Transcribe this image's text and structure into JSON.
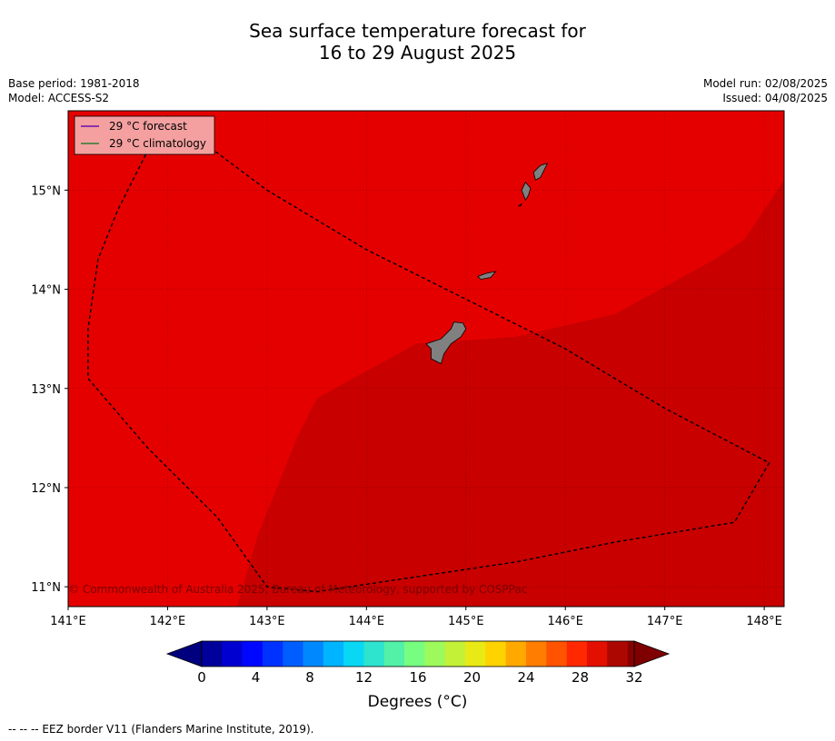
{
  "title": {
    "line1": "Sea surface temperature forecast for",
    "line2": "16 to 29 August 2025"
  },
  "meta": {
    "base_period": "Base period: 1981-2018",
    "model": "Model: ACCESS-S2",
    "model_run": "Model run: 02/08/2025",
    "issued": "Issued: 04/08/2025"
  },
  "legend": {
    "items": [
      {
        "label": "29 °C  forecast",
        "color": "#6a0dad"
      },
      {
        "label": "29 °C  climatology",
        "color": "#2e7d32"
      }
    ]
  },
  "copyright": "© Commonwealth of Australia 2025, Bureau of Meteorology, supported by COSPPac",
  "footer_note": "--  --  -- EEZ border V11 (Flanders Marine Institute, 2019).",
  "colorbar": {
    "title": "Degrees (°C)",
    "min": 0,
    "max": 32,
    "step": 1.5,
    "tick_labels": [
      "0",
      "4",
      "8",
      "12",
      "16",
      "20",
      "24",
      "28",
      "32"
    ]
  },
  "map": {
    "lon_range": [
      141.0,
      148.2
    ],
    "lat_range": [
      10.8,
      15.8
    ],
    "lon_ticks": [
      141,
      142,
      143,
      144,
      145,
      146,
      147,
      148
    ],
    "lon_tick_labels": [
      "141°E",
      "142°E",
      "143°E",
      "144°E",
      "145°E",
      "146°E",
      "147°E",
      "148°E"
    ],
    "lat_ticks": [
      11,
      12,
      13,
      14,
      15
    ],
    "lat_tick_labels": [
      "11°N",
      "12°N",
      "13°N",
      "14°N",
      "15°N"
    ],
    "sst_bands": [
      {
        "name": "29.5-31 °C",
        "color": "#e50000"
      },
      {
        "name": "31-32 °C",
        "color": "#c80000"
      }
    ],
    "warm_band_boundary": [
      [
        142.7,
        10.8
      ],
      [
        142.9,
        11.5
      ],
      [
        143.3,
        12.5
      ],
      [
        143.5,
        12.9
      ],
      [
        144.5,
        13.45
      ],
      [
        145.5,
        13.52
      ],
      [
        146.5,
        13.75
      ],
      [
        147.5,
        14.3
      ],
      [
        147.8,
        14.5
      ],
      [
        148.2,
        15.1
      ],
      [
        148.2,
        10.8
      ]
    ],
    "eez_border": [
      [
        142.0,
        15.75
      ],
      [
        141.8,
        15.4
      ],
      [
        141.5,
        14.8
      ],
      [
        141.3,
        14.3
      ],
      [
        141.2,
        13.6
      ],
      [
        141.2,
        13.1
      ],
      [
        141.8,
        12.4
      ],
      [
        142.5,
        11.7
      ],
      [
        143.0,
        11.0
      ],
      [
        143.5,
        10.95
      ],
      [
        144.5,
        11.1
      ],
      [
        145.5,
        11.25
      ],
      [
        146.5,
        11.45
      ],
      [
        147.7,
        11.65
      ],
      [
        148.05,
        12.25
      ],
      [
        147.0,
        12.8
      ],
      [
        146.0,
        13.4
      ],
      [
        145.0,
        13.9
      ],
      [
        144.0,
        14.4
      ],
      [
        143.0,
        15.0
      ],
      [
        142.4,
        15.45
      ],
      [
        142.0,
        15.75
      ]
    ],
    "islands": [
      {
        "name": "Guam",
        "shape": [
          [
            144.65,
            13.3
          ],
          [
            144.75,
            13.25
          ],
          [
            144.78,
            13.35
          ],
          [
            144.85,
            13.45
          ],
          [
            144.95,
            13.52
          ],
          [
            145.0,
            13.6
          ],
          [
            144.97,
            13.66
          ],
          [
            144.88,
            13.67
          ],
          [
            144.85,
            13.6
          ],
          [
            144.75,
            13.5
          ],
          [
            144.6,
            13.45
          ],
          [
            144.65,
            13.4
          ]
        ]
      },
      {
        "name": "Rota",
        "shape": [
          [
            145.12,
            14.13
          ],
          [
            145.2,
            14.16
          ],
          [
            145.3,
            14.18
          ],
          [
            145.25,
            14.12
          ],
          [
            145.15,
            14.1
          ]
        ]
      },
      {
        "name": "Tinian",
        "shape": [
          [
            145.6,
            14.9
          ],
          [
            145.63,
            14.95
          ],
          [
            145.65,
            15.02
          ],
          [
            145.6,
            15.08
          ],
          [
            145.56,
            15.0
          ]
        ]
      },
      {
        "name": "Saipan",
        "shape": [
          [
            145.7,
            15.1
          ],
          [
            145.75,
            15.13
          ],
          [
            145.82,
            15.27
          ],
          [
            145.75,
            15.25
          ],
          [
            145.68,
            15.18
          ]
        ]
      },
      {
        "name": "Aguijan",
        "shape": [
          [
            145.53,
            14.84
          ],
          [
            145.56,
            14.86
          ],
          [
            145.55,
            14.84
          ]
        ]
      }
    ]
  }
}
